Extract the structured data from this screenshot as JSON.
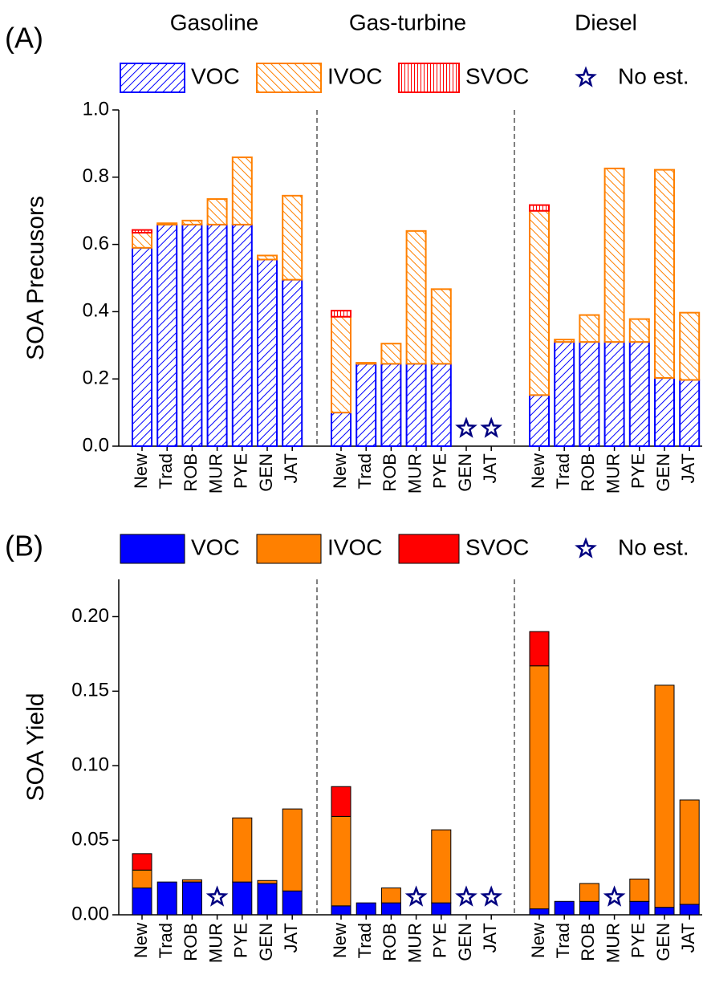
{
  "chart_data": [
    {
      "type": "bar",
      "stacked": true,
      "label": "(A)",
      "y_label": "SOA Precusors",
      "groups": [
        "Gasoline",
        "Gas-turbine",
        "Diesel"
      ],
      "categories": [
        [
          "New",
          "Trad",
          "ROB",
          "MUR",
          "PYE",
          "GEN",
          "JAT"
        ],
        [
          "New",
          "Trad",
          "ROB",
          "MUR",
          "PYE",
          "GEN",
          "JAT"
        ],
        [
          "New",
          "Trad",
          "ROB",
          "MUR",
          "PYE",
          "GEN",
          "JAT"
        ]
      ],
      "fill": "hatched",
      "series": [
        {
          "name": "VOC",
          "color": "#0000ff",
          "pattern": "forward-diagonal",
          "values": [
            [
              0.59,
              0.659,
              0.659,
              0.659,
              0.659,
              0.555,
              0.495
            ],
            [
              0.1,
              0.245,
              0.245,
              0.245,
              0.245,
              null,
              null
            ],
            [
              0.152,
              0.31,
              0.31,
              0.31,
              0.31,
              0.203,
              0.197
            ]
          ]
        },
        {
          "name": "IVOC",
          "color": "#ff8000",
          "pattern": "backward-diagonal",
          "values": [
            [
              0.045,
              0.004,
              0.012,
              0.076,
              0.2,
              0.012,
              0.25
            ],
            [
              0.285,
              0.003,
              0.06,
              0.395,
              0.222,
              null,
              null
            ],
            [
              0.548,
              0.007,
              0.08,
              0.516,
              0.068,
              0.619,
              0.2
            ]
          ]
        },
        {
          "name": "SVOC",
          "color": "#ff0000",
          "pattern": "vertical",
          "values": [
            [
              0.008,
              null,
              null,
              null,
              null,
              null,
              null
            ],
            [
              0.018,
              null,
              null,
              null,
              null,
              null,
              null
            ],
            [
              0.017,
              null,
              null,
              null,
              null,
              null,
              null
            ]
          ]
        }
      ],
      "no_estimate_label": "No est.",
      "no_estimate_color": "#000080",
      "ylim": [
        0,
        1
      ],
      "yticks": [
        {
          "value": 0,
          "label": "0.0"
        },
        {
          "value": 0.2,
          "label": "0.2"
        },
        {
          "value": 0.4,
          "label": "0.4"
        },
        {
          "value": 0.6,
          "label": "0.6"
        },
        {
          "value": 0.8,
          "label": "0.8"
        },
        {
          "value": 1,
          "label": "1.0"
        }
      ]
    },
    {
      "type": "bar",
      "stacked": true,
      "label": "(B)",
      "y_label": "SOA Yield",
      "categories": [
        [
          "New",
          "Trad",
          "ROB",
          "MUR",
          "PYE",
          "GEN",
          "JAT"
        ],
        [
          "New",
          "Trad",
          "ROB",
          "MUR",
          "PYE",
          "GEN",
          "JAT"
        ],
        [
          "New",
          "Trad",
          "ROB",
          "MUR",
          "PYE",
          "GEN",
          "JAT"
        ]
      ],
      "fill": "solid",
      "series": [
        {
          "name": "VOC",
          "color": "#0000ff",
          "values": [
            [
              0.018,
              0.022,
              0.022,
              null,
              0.022,
              0.021,
              0.016
            ],
            [
              0.006,
              0.008,
              0.008,
              null,
              0.008,
              null,
              null
            ],
            [
              0.004,
              0.009,
              0.009,
              null,
              0.009,
              0.005,
              0.007
            ]
          ]
        },
        {
          "name": "IVOC",
          "color": "#ff8000",
          "values": [
            [
              0.012,
              null,
              0.0015,
              null,
              0.043,
              0.002,
              0.055
            ],
            [
              0.06,
              null,
              0.01,
              null,
              0.049,
              null,
              null
            ],
            [
              0.163,
              null,
              0.012,
              null,
              0.015,
              0.149,
              0.07
            ]
          ]
        },
        {
          "name": "SVOC",
          "color": "#ff0000",
          "values": [
            [
              0.011,
              null,
              null,
              null,
              null,
              null,
              null
            ],
            [
              0.02,
              null,
              null,
              null,
              null,
              null,
              null
            ],
            [
              0.023,
              null,
              null,
              null,
              null,
              null,
              null
            ]
          ]
        }
      ],
      "no_estimate_label": "No est.",
      "no_estimate_color": "#000080",
      "ylim": [
        0,
        0.225
      ],
      "yticks": [
        {
          "value": 0,
          "label": "0.00"
        },
        {
          "value": 0.05,
          "label": "0.05"
        },
        {
          "value": 0.1,
          "label": "0.10"
        },
        {
          "value": 0.15,
          "label": "0.15"
        },
        {
          "value": 0.2,
          "label": "0.20"
        }
      ]
    }
  ]
}
